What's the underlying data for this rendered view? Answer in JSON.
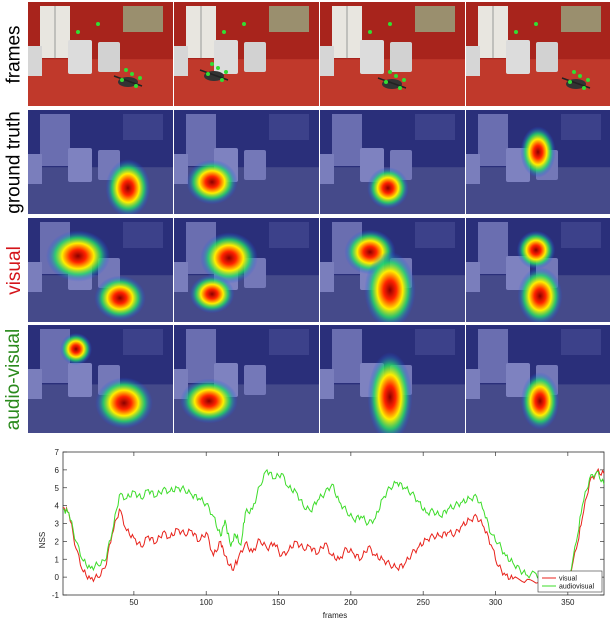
{
  "rows": [
    {
      "id": "frames",
      "label": "frames",
      "color": "#000000",
      "type": "frames"
    },
    {
      "id": "ground-truth",
      "label": "ground truth",
      "color": "#000000",
      "type": "heat"
    },
    {
      "id": "visual",
      "label": "visual",
      "color": "#d4141a",
      "type": "heat"
    },
    {
      "id": "audio-visual",
      "label": "audio-visual",
      "color": "#2a8a1c",
      "type": "heat"
    }
  ],
  "colors": {
    "frame_wall": "#a8241c",
    "frame_floor": "#c0392b",
    "heat_bg": "#2a2f7a",
    "fixation": "#33dd33"
  },
  "chart_data": {
    "type": "line",
    "xlabel": "frames",
    "ylabel": "NSS",
    "xlim": [
      1,
      375
    ],
    "ylim": [
      -1,
      7
    ],
    "xticks": [
      50,
      100,
      150,
      200,
      250,
      300,
      350
    ],
    "yticks": [
      -1,
      0,
      1,
      2,
      3,
      4,
      5,
      6,
      7
    ],
    "legend": "bottom-right",
    "series": [
      {
        "name": "visual",
        "color": "#e8231c",
        "points": [
          [
            1,
            3.9
          ],
          [
            5,
            3.6
          ],
          [
            10,
            1.6
          ],
          [
            15,
            0.3
          ],
          [
            20,
            -0.1
          ],
          [
            25,
            0.0
          ],
          [
            30,
            0.5
          ],
          [
            35,
            2.4
          ],
          [
            40,
            3.8
          ],
          [
            45,
            2.6
          ],
          [
            50,
            2.2
          ],
          [
            55,
            1.7
          ],
          [
            60,
            2.3
          ],
          [
            65,
            1.9
          ],
          [
            70,
            2.5
          ],
          [
            75,
            2.2
          ],
          [
            80,
            2.7
          ],
          [
            85,
            2.4
          ],
          [
            90,
            2.6
          ],
          [
            95,
            2.0
          ],
          [
            100,
            2.5
          ],
          [
            105,
            1.2
          ],
          [
            110,
            2.0
          ],
          [
            113,
            1.2
          ],
          [
            118,
            0.4
          ],
          [
            122,
            1.0
          ],
          [
            127,
            1.9
          ],
          [
            132,
            1.4
          ],
          [
            137,
            2.1
          ],
          [
            142,
            1.6
          ],
          [
            147,
            1.9
          ],
          [
            152,
            1.2
          ],
          [
            157,
            1.5
          ],
          [
            162,
            2.0
          ],
          [
            167,
            1.6
          ],
          [
            172,
            1.7
          ],
          [
            177,
            1.3
          ],
          [
            182,
            1.9
          ],
          [
            187,
            1.2
          ],
          [
            192,
            1.0
          ],
          [
            197,
            1.6
          ],
          [
            202,
            1.3
          ],
          [
            207,
            1.0
          ],
          [
            212,
            1.7
          ],
          [
            217,
            1.2
          ],
          [
            222,
            1.0
          ],
          [
            227,
            0.7
          ],
          [
            232,
            0.5
          ],
          [
            237,
            0.7
          ],
          [
            242,
            1.3
          ],
          [
            247,
            1.7
          ],
          [
            252,
            2.1
          ],
          [
            257,
            2.3
          ],
          [
            262,
            2.3
          ],
          [
            267,
            2.5
          ],
          [
            272,
            2.4
          ],
          [
            277,
            2.9
          ],
          [
            282,
            3.2
          ],
          [
            287,
            3.4
          ],
          [
            292,
            2.8
          ],
          [
            297,
            1.8
          ],
          [
            302,
            0.6
          ],
          [
            307,
            0.1
          ],
          [
            312,
            -0.1
          ],
          [
            320,
            -0.3
          ],
          [
            330,
            -0.3
          ],
          [
            340,
            -0.3
          ],
          [
            350,
            -0.2
          ],
          [
            356,
            1.6
          ],
          [
            360,
            3.3
          ],
          [
            365,
            5.3
          ],
          [
            370,
            5.9
          ],
          [
            375,
            5.8
          ]
        ]
      },
      {
        "name": "audiovisual",
        "color": "#3ddc2a",
        "points": [
          [
            1,
            3.8
          ],
          [
            5,
            3.6
          ],
          [
            10,
            2.0
          ],
          [
            15,
            0.9
          ],
          [
            20,
            0.5
          ],
          [
            25,
            0.7
          ],
          [
            30,
            0.9
          ],
          [
            35,
            2.5
          ],
          [
            40,
            4.6
          ],
          [
            45,
            4.4
          ],
          [
            50,
            4.8
          ],
          [
            55,
            4.4
          ],
          [
            60,
            4.9
          ],
          [
            65,
            4.5
          ],
          [
            70,
            4.9
          ],
          [
            75,
            4.8
          ],
          [
            80,
            5.0
          ],
          [
            85,
            4.9
          ],
          [
            90,
            4.6
          ],
          [
            95,
            4.4
          ],
          [
            100,
            4.1
          ],
          [
            105,
            3.4
          ],
          [
            110,
            2.3
          ],
          [
            113,
            3.2
          ],
          [
            117,
            1.7
          ],
          [
            120,
            2.4
          ],
          [
            124,
            1.8
          ],
          [
            127,
            3.6
          ],
          [
            132,
            3.8
          ],
          [
            137,
            5.1
          ],
          [
            142,
            6.0
          ],
          [
            147,
            5.5
          ],
          [
            152,
            5.8
          ],
          [
            157,
            5.0
          ],
          [
            162,
            4.8
          ],
          [
            167,
            4.0
          ],
          [
            172,
            3.7
          ],
          [
            177,
            4.3
          ],
          [
            182,
            4.7
          ],
          [
            187,
            5.2
          ],
          [
            192,
            4.2
          ],
          [
            197,
            3.7
          ],
          [
            202,
            3.2
          ],
          [
            207,
            3.4
          ],
          [
            212,
            3.0
          ],
          [
            217,
            3.3
          ],
          [
            222,
            4.4
          ],
          [
            227,
            5.0
          ],
          [
            232,
            5.3
          ],
          [
            237,
            5.0
          ],
          [
            242,
            4.7
          ],
          [
            247,
            4.2
          ],
          [
            252,
            3.6
          ],
          [
            257,
            3.7
          ],
          [
            262,
            3.4
          ],
          [
            267,
            3.8
          ],
          [
            272,
            4.0
          ],
          [
            277,
            4.2
          ],
          [
            282,
            4.4
          ],
          [
            287,
            4.5
          ],
          [
            292,
            3.7
          ],
          [
            297,
            2.4
          ],
          [
            302,
            1.9
          ],
          [
            307,
            1.2
          ],
          [
            312,
            0.8
          ],
          [
            317,
            0.4
          ],
          [
            322,
            0.1
          ],
          [
            328,
            0.2
          ],
          [
            333,
            -0.1
          ],
          [
            340,
            -0.2
          ],
          [
            350,
            -0.3
          ],
          [
            356,
            2.0
          ],
          [
            360,
            4.0
          ],
          [
            365,
            5.5
          ],
          [
            370,
            5.9
          ],
          [
            375,
            5.2
          ]
        ]
      }
    ]
  }
}
